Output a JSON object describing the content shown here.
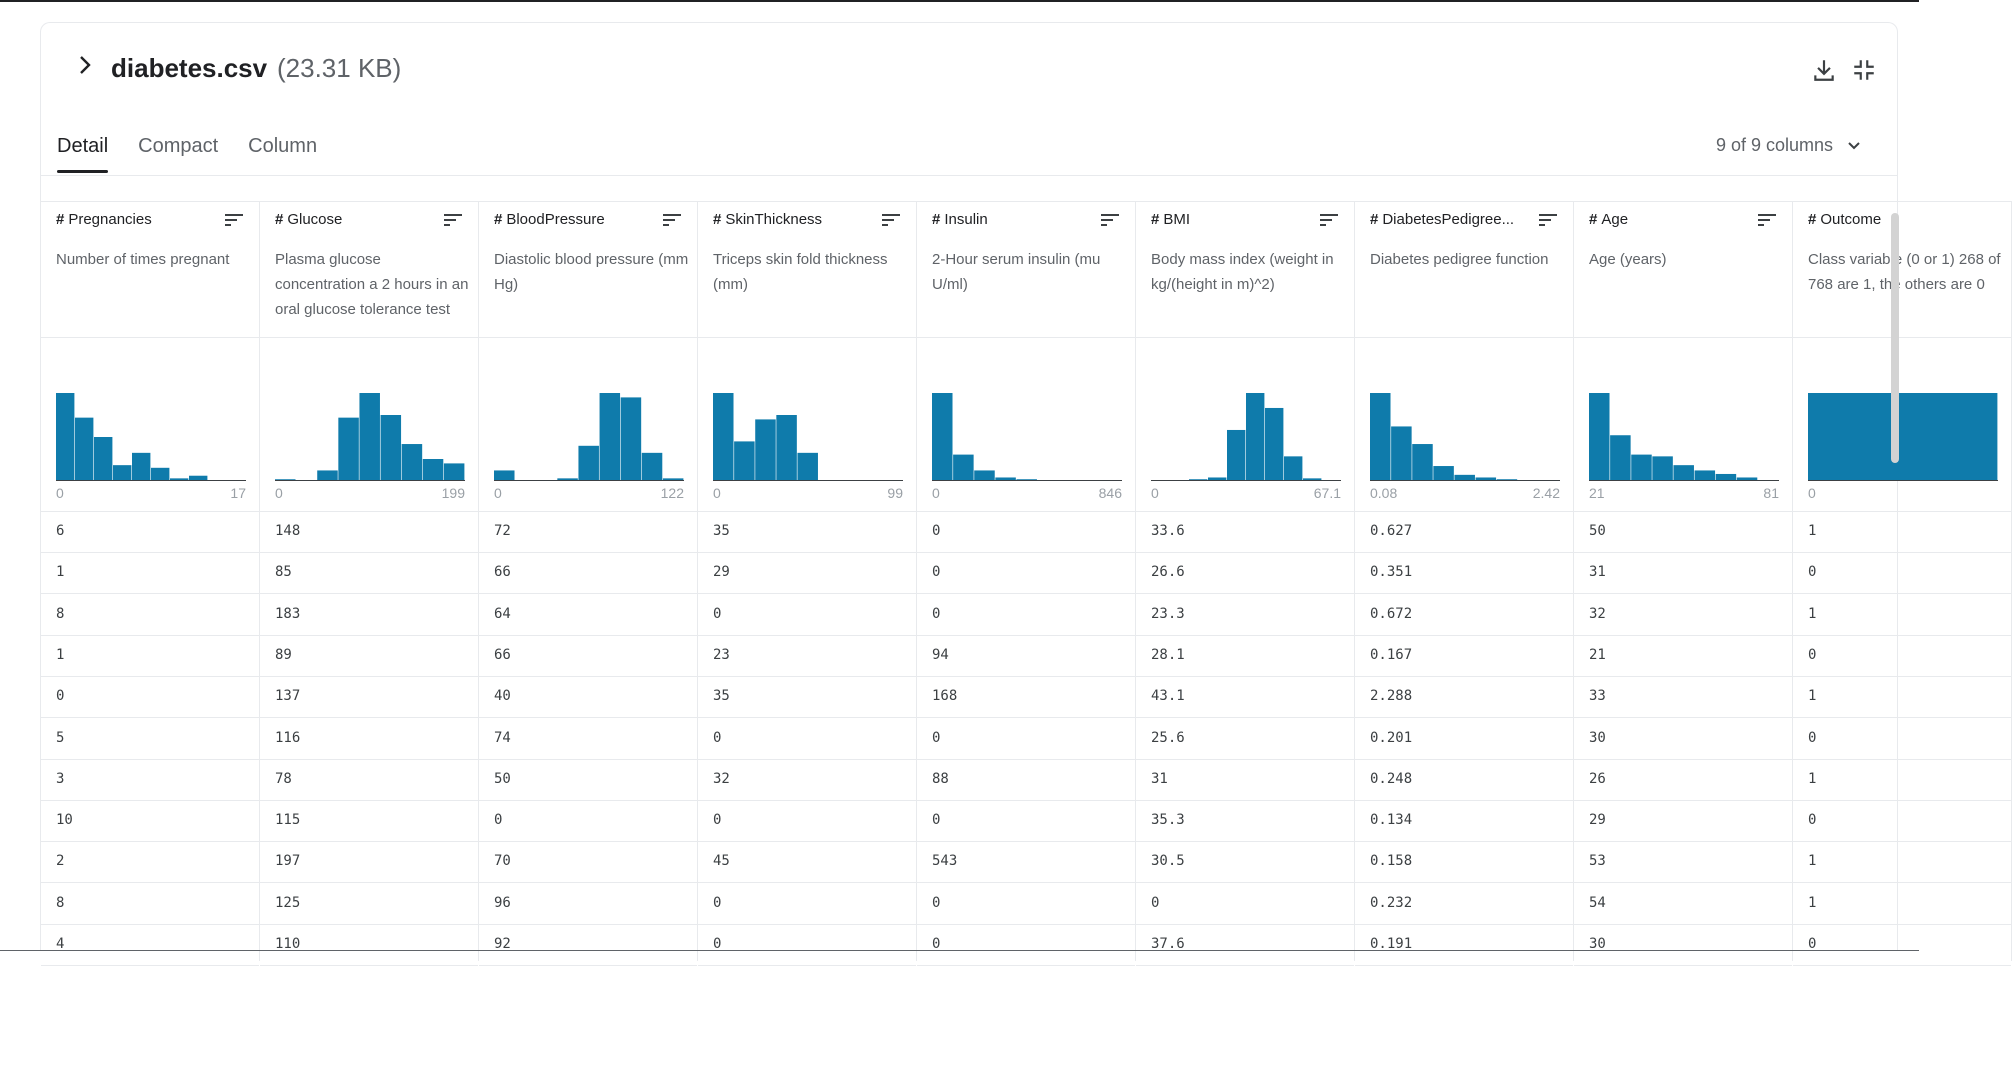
{
  "header": {
    "file_name": "diabetes.csv",
    "file_size": "(23.31 KB)",
    "expand_icon": "chevron-right-icon",
    "download_icon": "download-icon",
    "collapse_icon": "collapse-icon"
  },
  "tabs": [
    {
      "label": "Detail",
      "active": true
    },
    {
      "label": "Compact",
      "active": false
    },
    {
      "label": "Column",
      "active": false
    }
  ],
  "column_selector": {
    "label": "9 of 9 columns"
  },
  "accent_color": "#0f7bab",
  "columns": [
    {
      "name": "Pregnancies",
      "description": "Number of times pregnant",
      "min": "0",
      "max": "17",
      "hist": [
        100,
        72,
        50,
        18,
        32,
        15,
        3,
        6,
        0,
        1
      ]
    },
    {
      "name": "Glucose",
      "description": "Plasma glucose concentration a 2 hours in an oral glucose tolerance test",
      "min": "0",
      "max": "199",
      "hist": [
        2,
        0,
        12,
        72,
        100,
        75,
        42,
        25,
        20
      ]
    },
    {
      "name": "BloodPressure",
      "description": "Diastolic blood pressure (mm Hg)",
      "min": "0",
      "max": "122",
      "hist": [
        12,
        0,
        0,
        3,
        40,
        100,
        95,
        32,
        3
      ]
    },
    {
      "name": "SkinThickness",
      "description": "Triceps skin fold thickness (mm)",
      "min": "0",
      "max": "99",
      "hist": [
        100,
        45,
        70,
        75,
        32,
        1,
        0,
        0,
        0
      ]
    },
    {
      "name": "Insulin",
      "description": "2-Hour serum insulin (mu U/ml)",
      "min": "0",
      "max": "846",
      "hist": [
        100,
        30,
        12,
        4,
        2,
        1,
        1,
        0,
        1
      ]
    },
    {
      "name": "BMI",
      "description": "Body mass index (weight in kg/(height in m)^2)",
      "min": "0",
      "max": "67.1",
      "hist": [
        1,
        0,
        2,
        4,
        58,
        100,
        83,
        28,
        3,
        1
      ]
    },
    {
      "name": "DiabetesPedigree...",
      "description": "Diabetes pedigree function",
      "min": "0.08",
      "max": "2.42",
      "hist": [
        100,
        62,
        42,
        17,
        7,
        4,
        2,
        1,
        1
      ]
    },
    {
      "name": "Age",
      "description": "Age (years)",
      "min": "21",
      "max": "81",
      "hist": [
        100,
        52,
        30,
        28,
        18,
        12,
        8,
        4,
        1
      ]
    },
    {
      "name": "Outcome",
      "description": "Class variable (0 or 1) 268 of 768 are 1, the others are 0",
      "description_visible": "Class variab of 768 are 1 are 0",
      "min": "0",
      "max": "",
      "hist": [
        100
      ]
    }
  ],
  "rows": [
    [
      "6",
      "148",
      "72",
      "35",
      "0",
      "33.6",
      "0.627",
      "50",
      "1"
    ],
    [
      "1",
      "85",
      "66",
      "29",
      "0",
      "26.6",
      "0.351",
      "31",
      "0"
    ],
    [
      "8",
      "183",
      "64",
      "0",
      "0",
      "23.3",
      "0.672",
      "32",
      "1"
    ],
    [
      "1",
      "89",
      "66",
      "23",
      "94",
      "28.1",
      "0.167",
      "21",
      "0"
    ],
    [
      "0",
      "137",
      "40",
      "35",
      "168",
      "43.1",
      "2.288",
      "33",
      "1"
    ],
    [
      "5",
      "116",
      "74",
      "0",
      "0",
      "25.6",
      "0.201",
      "30",
      "0"
    ],
    [
      "3",
      "78",
      "50",
      "32",
      "88",
      "31",
      "0.248",
      "26",
      "1"
    ],
    [
      "10",
      "115",
      "0",
      "0",
      "0",
      "35.3",
      "0.134",
      "29",
      "0"
    ],
    [
      "2",
      "197",
      "70",
      "45",
      "543",
      "30.5",
      "0.158",
      "53",
      "1"
    ],
    [
      "8",
      "125",
      "96",
      "0",
      "0",
      "0",
      "0.232",
      "54",
      "1"
    ],
    [
      "4",
      "110",
      "92",
      "0",
      "0",
      "37.6",
      "0.191",
      "30",
      "0"
    ]
  ]
}
